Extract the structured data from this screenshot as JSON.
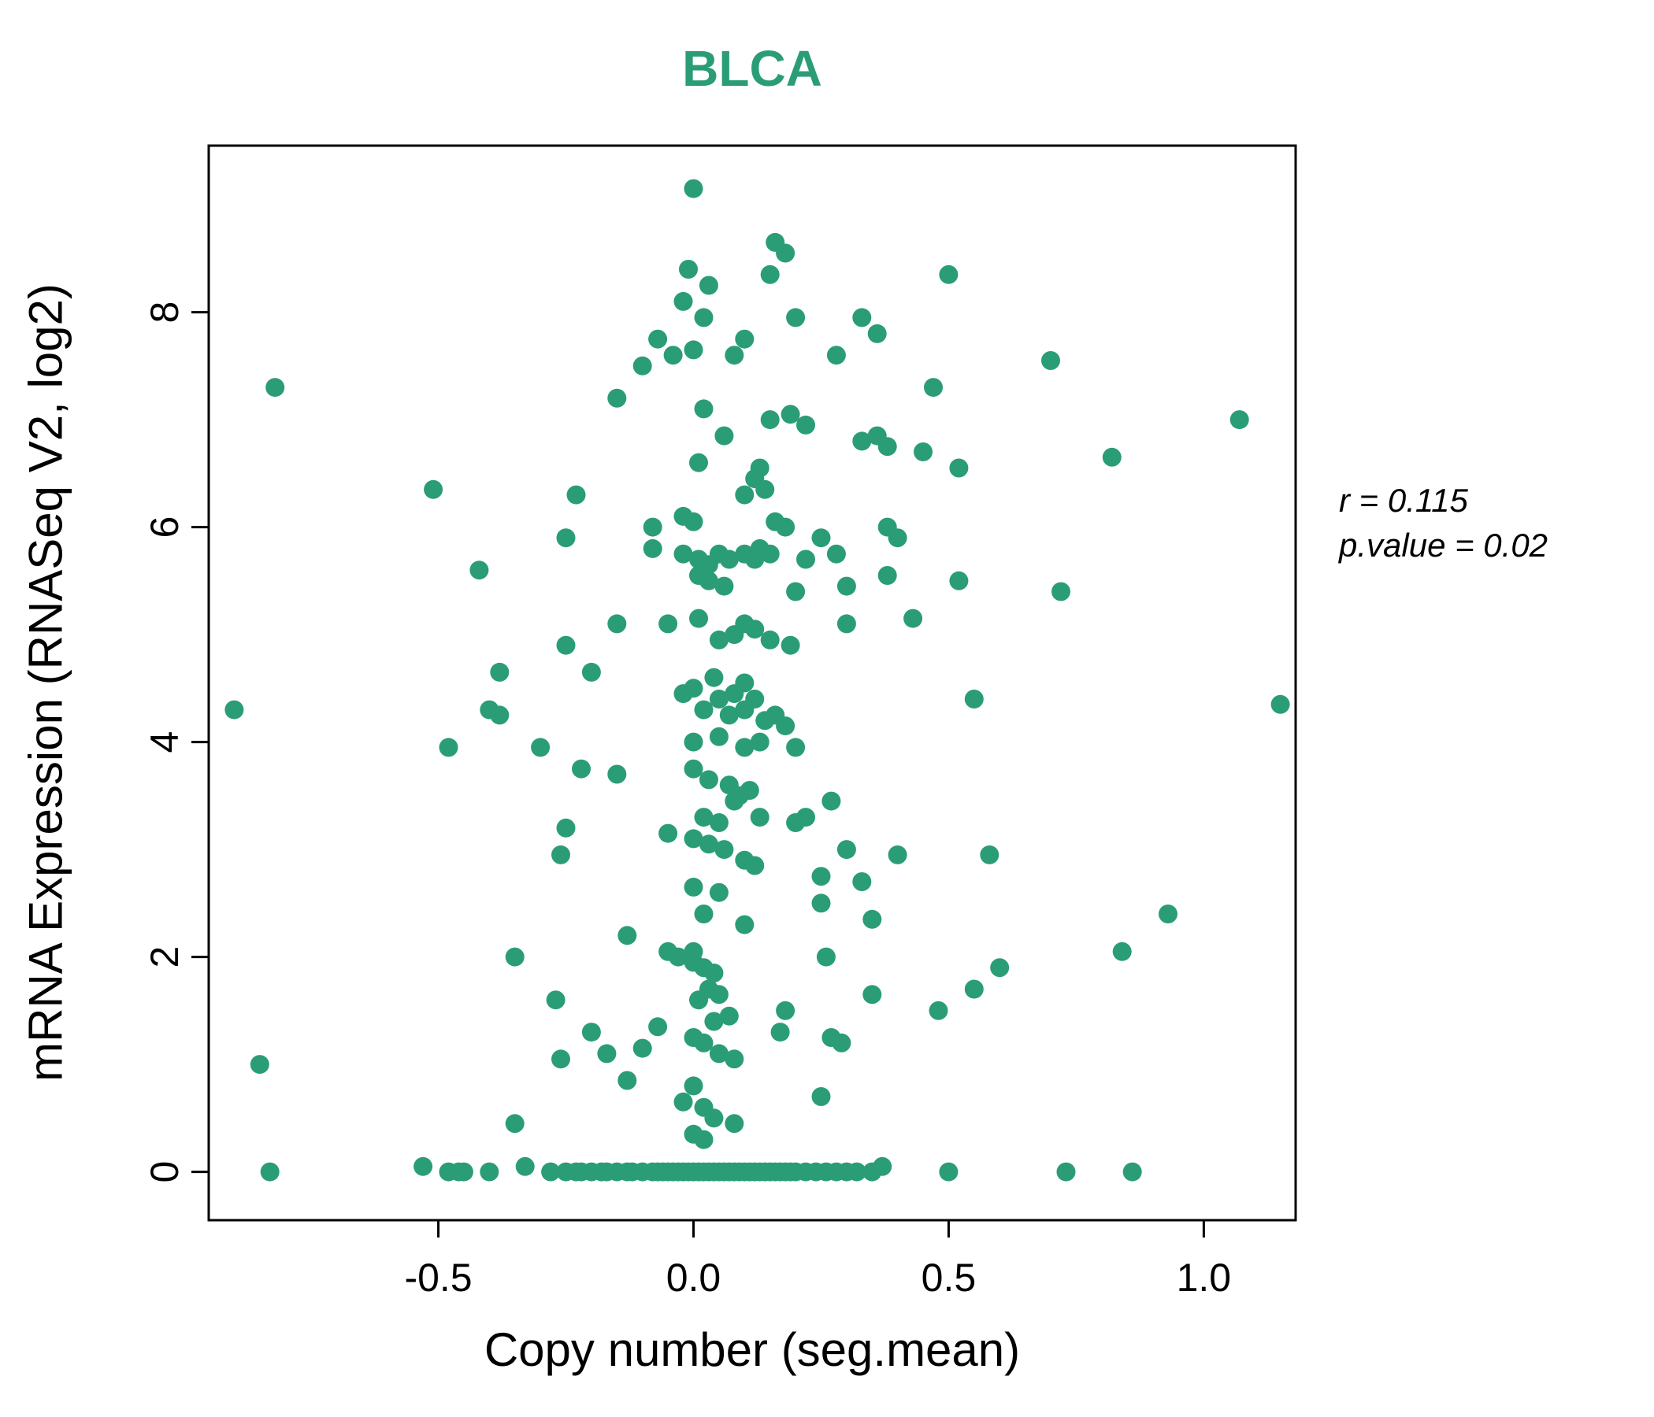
{
  "chart_data": {
    "type": "scatter",
    "title": "BLCA",
    "xlabel": "Copy number (seg.mean)",
    "ylabel": "mRNA Expression (RNASeq V2, log2)",
    "xlim": [
      -0.95,
      1.18
    ],
    "ylim": [
      -0.45,
      9.55
    ],
    "xticks": [
      -0.5,
      0.0,
      0.5,
      1.0
    ],
    "xtick_labels": [
      "-0.5",
      "0.0",
      "0.5",
      "1.0"
    ],
    "yticks": [
      0,
      2,
      4,
      6,
      8
    ],
    "ytick_labels": [
      "0",
      "2",
      "4",
      "6",
      "8"
    ],
    "grid": false,
    "legend": "none",
    "point_color": "#2a9d77",
    "title_color": "#2a9d77",
    "annotations": [
      "r = 0.115",
      "p.value = 0.02"
    ],
    "points": [
      [
        0.0,
        9.15
      ],
      [
        0.16,
        8.65
      ],
      [
        0.18,
        8.55
      ],
      [
        -0.01,
        8.4
      ],
      [
        0.03,
        8.25
      ],
      [
        0.15,
        8.35
      ],
      [
        0.5,
        8.35
      ],
      [
        -0.02,
        8.1
      ],
      [
        0.02,
        7.95
      ],
      [
        0.2,
        7.95
      ],
      [
        0.33,
        7.95
      ],
      [
        0.36,
        7.8
      ],
      [
        -0.07,
        7.75
      ],
      [
        0.1,
        7.75
      ],
      [
        -0.04,
        7.6
      ],
      [
        0.0,
        7.65
      ],
      [
        0.08,
        7.6
      ],
      [
        0.28,
        7.6
      ],
      [
        0.7,
        7.55
      ],
      [
        -0.1,
        7.5
      ],
      [
        0.47,
        7.3
      ],
      [
        -0.82,
        7.3
      ],
      [
        -0.15,
        7.2
      ],
      [
        0.02,
        7.1
      ],
      [
        0.15,
        7.0
      ],
      [
        0.19,
        7.05
      ],
      [
        0.22,
        6.95
      ],
      [
        1.07,
        7.0
      ],
      [
        0.06,
        6.85
      ],
      [
        0.33,
        6.8
      ],
      [
        0.36,
        6.85
      ],
      [
        0.38,
        6.75
      ],
      [
        0.45,
        6.7
      ],
      [
        0.82,
        6.65
      ],
      [
        0.01,
        6.6
      ],
      [
        0.13,
        6.55
      ],
      [
        0.52,
        6.55
      ],
      [
        -0.51,
        6.35
      ],
      [
        -0.23,
        6.3
      ],
      [
        0.12,
        6.45
      ],
      [
        0.14,
        6.35
      ],
      [
        0.1,
        6.3
      ],
      [
        -0.02,
        6.1
      ],
      [
        0.0,
        6.05
      ],
      [
        -0.08,
        6.0
      ],
      [
        0.16,
        6.05
      ],
      [
        0.18,
        6.0
      ],
      [
        0.38,
        6.0
      ],
      [
        0.4,
        5.9
      ],
      [
        0.25,
        5.9
      ],
      [
        -0.25,
        5.9
      ],
      [
        -0.08,
        5.8
      ],
      [
        -0.02,
        5.75
      ],
      [
        0.01,
        5.7
      ],
      [
        0.03,
        5.65
      ],
      [
        0.05,
        5.75
      ],
      [
        0.07,
        5.7
      ],
      [
        0.1,
        5.75
      ],
      [
        0.12,
        5.7
      ],
      [
        0.13,
        5.8
      ],
      [
        0.15,
        5.75
      ],
      [
        0.22,
        5.7
      ],
      [
        0.28,
        5.75
      ],
      [
        -0.42,
        5.6
      ],
      [
        0.01,
        5.55
      ],
      [
        0.03,
        5.5
      ],
      [
        0.06,
        5.45
      ],
      [
        0.38,
        5.55
      ],
      [
        0.52,
        5.5
      ],
      [
        0.2,
        5.4
      ],
      [
        0.3,
        5.45
      ],
      [
        0.72,
        5.4
      ],
      [
        0.43,
        5.15
      ],
      [
        0.01,
        5.15
      ],
      [
        -0.15,
        5.1
      ],
      [
        -0.05,
        5.1
      ],
      [
        0.1,
        5.1
      ],
      [
        0.12,
        5.05
      ],
      [
        0.3,
        5.1
      ],
      [
        0.05,
        4.95
      ],
      [
        0.08,
        5.0
      ],
      [
        0.15,
        4.95
      ],
      [
        0.19,
        4.9
      ],
      [
        -0.25,
        4.9
      ],
      [
        -0.38,
        4.65
      ],
      [
        -0.2,
        4.65
      ],
      [
        0.04,
        4.6
      ],
      [
        0.1,
        4.55
      ],
      [
        0.0,
        4.5
      ],
      [
        -0.02,
        4.45
      ],
      [
        0.05,
        4.4
      ],
      [
        0.08,
        4.45
      ],
      [
        0.12,
        4.4
      ],
      [
        0.55,
        4.4
      ],
      [
        1.15,
        4.35
      ],
      [
        -0.9,
        4.3
      ],
      [
        -0.4,
        4.3
      ],
      [
        -0.38,
        4.25
      ],
      [
        0.02,
        4.3
      ],
      [
        0.07,
        4.25
      ],
      [
        0.1,
        4.3
      ],
      [
        0.14,
        4.2
      ],
      [
        0.16,
        4.25
      ],
      [
        0.18,
        4.15
      ],
      [
        -0.48,
        3.95
      ],
      [
        -0.3,
        3.95
      ],
      [
        0.0,
        4.0
      ],
      [
        0.05,
        4.05
      ],
      [
        0.1,
        3.95
      ],
      [
        0.13,
        4.0
      ],
      [
        0.2,
        3.95
      ],
      [
        -0.22,
        3.75
      ],
      [
        -0.15,
        3.7
      ],
      [
        0.0,
        3.75
      ],
      [
        0.03,
        3.65
      ],
      [
        0.07,
        3.6
      ],
      [
        0.09,
        3.5
      ],
      [
        0.11,
        3.55
      ],
      [
        0.08,
        3.45
      ],
      [
        0.27,
        3.45
      ],
      [
        0.02,
        3.3
      ],
      [
        0.05,
        3.25
      ],
      [
        0.13,
        3.3
      ],
      [
        0.2,
        3.25
      ],
      [
        0.22,
        3.3
      ],
      [
        -0.25,
        3.2
      ],
      [
        -0.05,
        3.15
      ],
      [
        0.0,
        3.1
      ],
      [
        0.03,
        3.05
      ],
      [
        0.06,
        3.0
      ],
      [
        -0.26,
        2.95
      ],
      [
        0.3,
        3.0
      ],
      [
        0.4,
        2.95
      ],
      [
        0.58,
        2.95
      ],
      [
        0.1,
        2.9
      ],
      [
        0.12,
        2.85
      ],
      [
        0.25,
        2.75
      ],
      [
        0.33,
        2.7
      ],
      [
        0.0,
        2.65
      ],
      [
        0.05,
        2.6
      ],
      [
        0.25,
        2.5
      ],
      [
        0.02,
        2.4
      ],
      [
        0.35,
        2.35
      ],
      [
        0.93,
        2.4
      ],
      [
        0.84,
        2.05
      ],
      [
        -0.13,
        2.2
      ],
      [
        0.1,
        2.3
      ],
      [
        -0.05,
        2.05
      ],
      [
        -0.03,
        2.0
      ],
      [
        0.0,
        2.05
      ],
      [
        -0.35,
        2.0
      ],
      [
        0.26,
        2.0
      ],
      [
        0.0,
        1.95
      ],
      [
        0.02,
        1.9
      ],
      [
        0.04,
        1.85
      ],
      [
        0.6,
        1.9
      ],
      [
        0.55,
        1.7
      ],
      [
        0.35,
        1.65
      ],
      [
        0.03,
        1.7
      ],
      [
        0.05,
        1.65
      ],
      [
        0.01,
        1.6
      ],
      [
        -0.27,
        1.6
      ],
      [
        0.48,
        1.5
      ],
      [
        0.18,
        1.5
      ],
      [
        0.07,
        1.45
      ],
      [
        0.04,
        1.4
      ],
      [
        -0.07,
        1.35
      ],
      [
        -0.2,
        1.3
      ],
      [
        0.17,
        1.3
      ],
      [
        0.27,
        1.25
      ],
      [
        0.29,
        1.2
      ],
      [
        0.0,
        1.25
      ],
      [
        0.02,
        1.2
      ],
      [
        -0.1,
        1.15
      ],
      [
        -0.17,
        1.1
      ],
      [
        -0.26,
        1.05
      ],
      [
        -0.85,
        1.0
      ],
      [
        0.05,
        1.1
      ],
      [
        0.08,
        1.05
      ],
      [
        -0.13,
        0.85
      ],
      [
        0.0,
        0.8
      ],
      [
        -0.02,
        0.65
      ],
      [
        0.02,
        0.6
      ],
      [
        0.25,
        0.7
      ],
      [
        0.04,
        0.5
      ],
      [
        0.08,
        0.45
      ],
      [
        -0.35,
        0.45
      ],
      [
        0.0,
        0.35
      ],
      [
        0.02,
        0.3
      ],
      [
        -0.83,
        0
      ],
      [
        -0.53,
        0.05
      ],
      [
        -0.48,
        0
      ],
      [
        -0.46,
        0
      ],
      [
        -0.45,
        0
      ],
      [
        -0.4,
        0
      ],
      [
        -0.33,
        0.05
      ],
      [
        -0.28,
        0
      ],
      [
        -0.25,
        0
      ],
      [
        -0.23,
        0
      ],
      [
        -0.22,
        0
      ],
      [
        -0.2,
        0
      ],
      [
        -0.18,
        0
      ],
      [
        -0.17,
        0
      ],
      [
        -0.15,
        0
      ],
      [
        -0.13,
        0
      ],
      [
        -0.12,
        0
      ],
      [
        -0.1,
        0
      ],
      [
        -0.08,
        0
      ],
      [
        -0.07,
        0
      ],
      [
        -0.06,
        0
      ],
      [
        -0.05,
        0
      ],
      [
        -0.04,
        0
      ],
      [
        -0.03,
        0
      ],
      [
        -0.02,
        0
      ],
      [
        -0.01,
        0
      ],
      [
        0.0,
        0
      ],
      [
        0.01,
        0
      ],
      [
        0.02,
        0
      ],
      [
        0.03,
        0
      ],
      [
        0.04,
        0
      ],
      [
        0.05,
        0
      ],
      [
        0.06,
        0
      ],
      [
        0.07,
        0
      ],
      [
        0.08,
        0
      ],
      [
        0.09,
        0
      ],
      [
        0.1,
        0
      ],
      [
        0.11,
        0
      ],
      [
        0.12,
        0
      ],
      [
        0.13,
        0
      ],
      [
        0.14,
        0
      ],
      [
        0.15,
        0
      ],
      [
        0.16,
        0
      ],
      [
        0.17,
        0
      ],
      [
        0.18,
        0
      ],
      [
        0.19,
        0
      ],
      [
        0.2,
        0
      ],
      [
        0.22,
        0
      ],
      [
        0.24,
        0
      ],
      [
        0.26,
        0
      ],
      [
        0.28,
        0
      ],
      [
        0.3,
        0
      ],
      [
        0.32,
        0
      ],
      [
        0.35,
        0
      ],
      [
        0.37,
        0.05
      ],
      [
        0.5,
        0
      ],
      [
        0.73,
        0
      ],
      [
        0.86,
        0
      ]
    ]
  }
}
